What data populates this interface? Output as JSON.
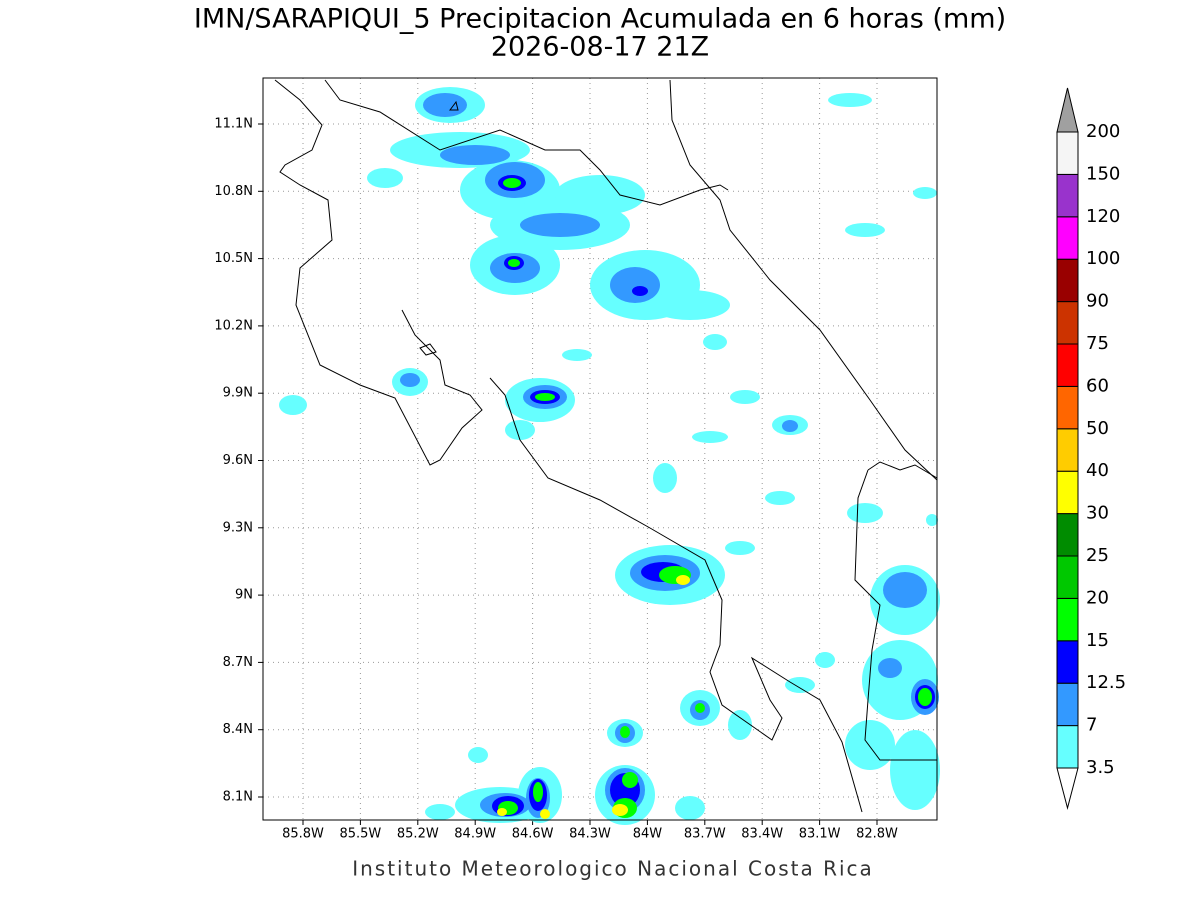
{
  "header": {
    "title": "IMN/SARAPIQUI_5 Precipitacion Acumulada en 6 horas (mm)",
    "subtitle": "2026-08-17 21Z"
  },
  "map": {
    "lon_labels": [
      "85.8W",
      "85.5W",
      "85.2W",
      "84.9W",
      "84.6W",
      "84.3W",
      "84W",
      "83.7W",
      "83.4W",
      "83.1W",
      "82.8W"
    ],
    "lat_labels": [
      "11.1N",
      "10.8N",
      "10.5N",
      "10.2N",
      "9.9N",
      "9.6N",
      "9.3N",
      "9N",
      "8.7N",
      "8.4N",
      "8.1N"
    ]
  },
  "colorbar": {
    "levels": [
      3.5,
      7,
      12.5,
      15,
      20,
      25,
      30,
      40,
      50,
      60,
      75,
      90,
      100,
      120,
      150,
      200
    ],
    "colors": [
      "#66ffff",
      "#3399ff",
      "#0000ff",
      "#00ff00",
      "#00c800",
      "#008c00",
      "#ffff00",
      "#ffcc00",
      "#ff6600",
      "#ff0000",
      "#cc3300",
      "#990000",
      "#ff00ff",
      "#9933cc",
      "#f5f5f5"
    ],
    "over_color": "#a0a0a0",
    "under_color": "#ffffff"
  },
  "footer": "Instituto Meteorologico Nacional Costa Rica"
}
